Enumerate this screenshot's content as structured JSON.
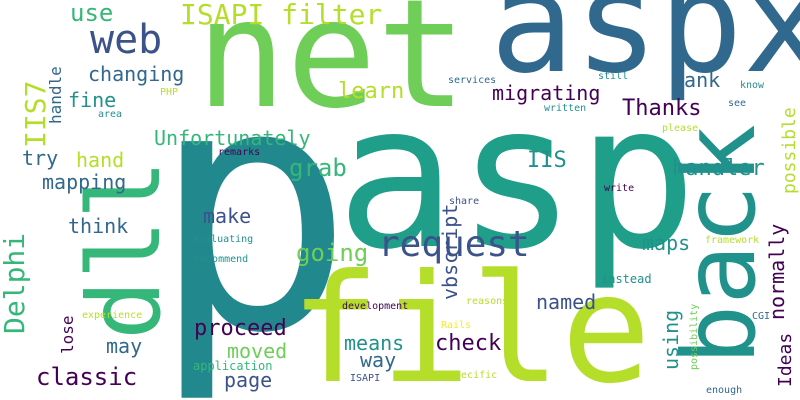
{
  "palette": {
    "dark_purple": "#440154",
    "indigo": "#3b528b",
    "steel_blue": "#31688e",
    "teal": "#21918c",
    "green_teal": "#1f9e89",
    "green": "#35b779",
    "light_green": "#6ece58",
    "lime": "#b5de2b",
    "yellow": "#fde725"
  },
  "words": {
    "p": "p",
    "asp": "asp",
    "net": "net",
    "aspx": "aspx",
    "file": "file",
    "back": "back",
    "dll": "dll",
    "request": "request",
    "isapi_filter": "ISAPI filter",
    "web": "web",
    "delphi": "Delphi",
    "iis7": "IIS7",
    "use": "use",
    "changing": "changing",
    "handle": "handle",
    "fine": "fine",
    "learn": "learn",
    "migrating": "migrating",
    "rank": "rank",
    "unfortunately": "Unfortunately",
    "thanks": "Thanks",
    "try": "try",
    "hand": "hand",
    "mapping": "mapping",
    "think": "think",
    "make": "make",
    "grab": "grab",
    "vbscript": "vbscript",
    "iis": "IIS",
    "handler": "handler",
    "possible": "possible",
    "going": "going",
    "maps": "maps",
    "normally": "normally",
    "lose": "lose",
    "proceed": "proceed",
    "may": "may",
    "moved": "moved",
    "means": "means",
    "way": "way",
    "check": "check",
    "named": "named",
    "using": "using",
    "ideas": "Ideas",
    "classic": "classic",
    "page": "page",
    "services": "services",
    "still": "still",
    "know": "know",
    "php": "PHP",
    "written": "written",
    "see": "see",
    "area": "area",
    "please": "please",
    "remarks": "remarks",
    "write": "write",
    "share": "share",
    "evaluating": "evaluating",
    "recommend": "recommend",
    "framework": "framework",
    "instead": "instead",
    "development": "development",
    "reasons": "reasons",
    "experience": "experience",
    "rails": "Rails",
    "cgi": "CGI",
    "application": "application",
    "isapi": "ISAPI",
    "specific": "specific",
    "possibility": "possibility",
    "enough": "enough"
  }
}
